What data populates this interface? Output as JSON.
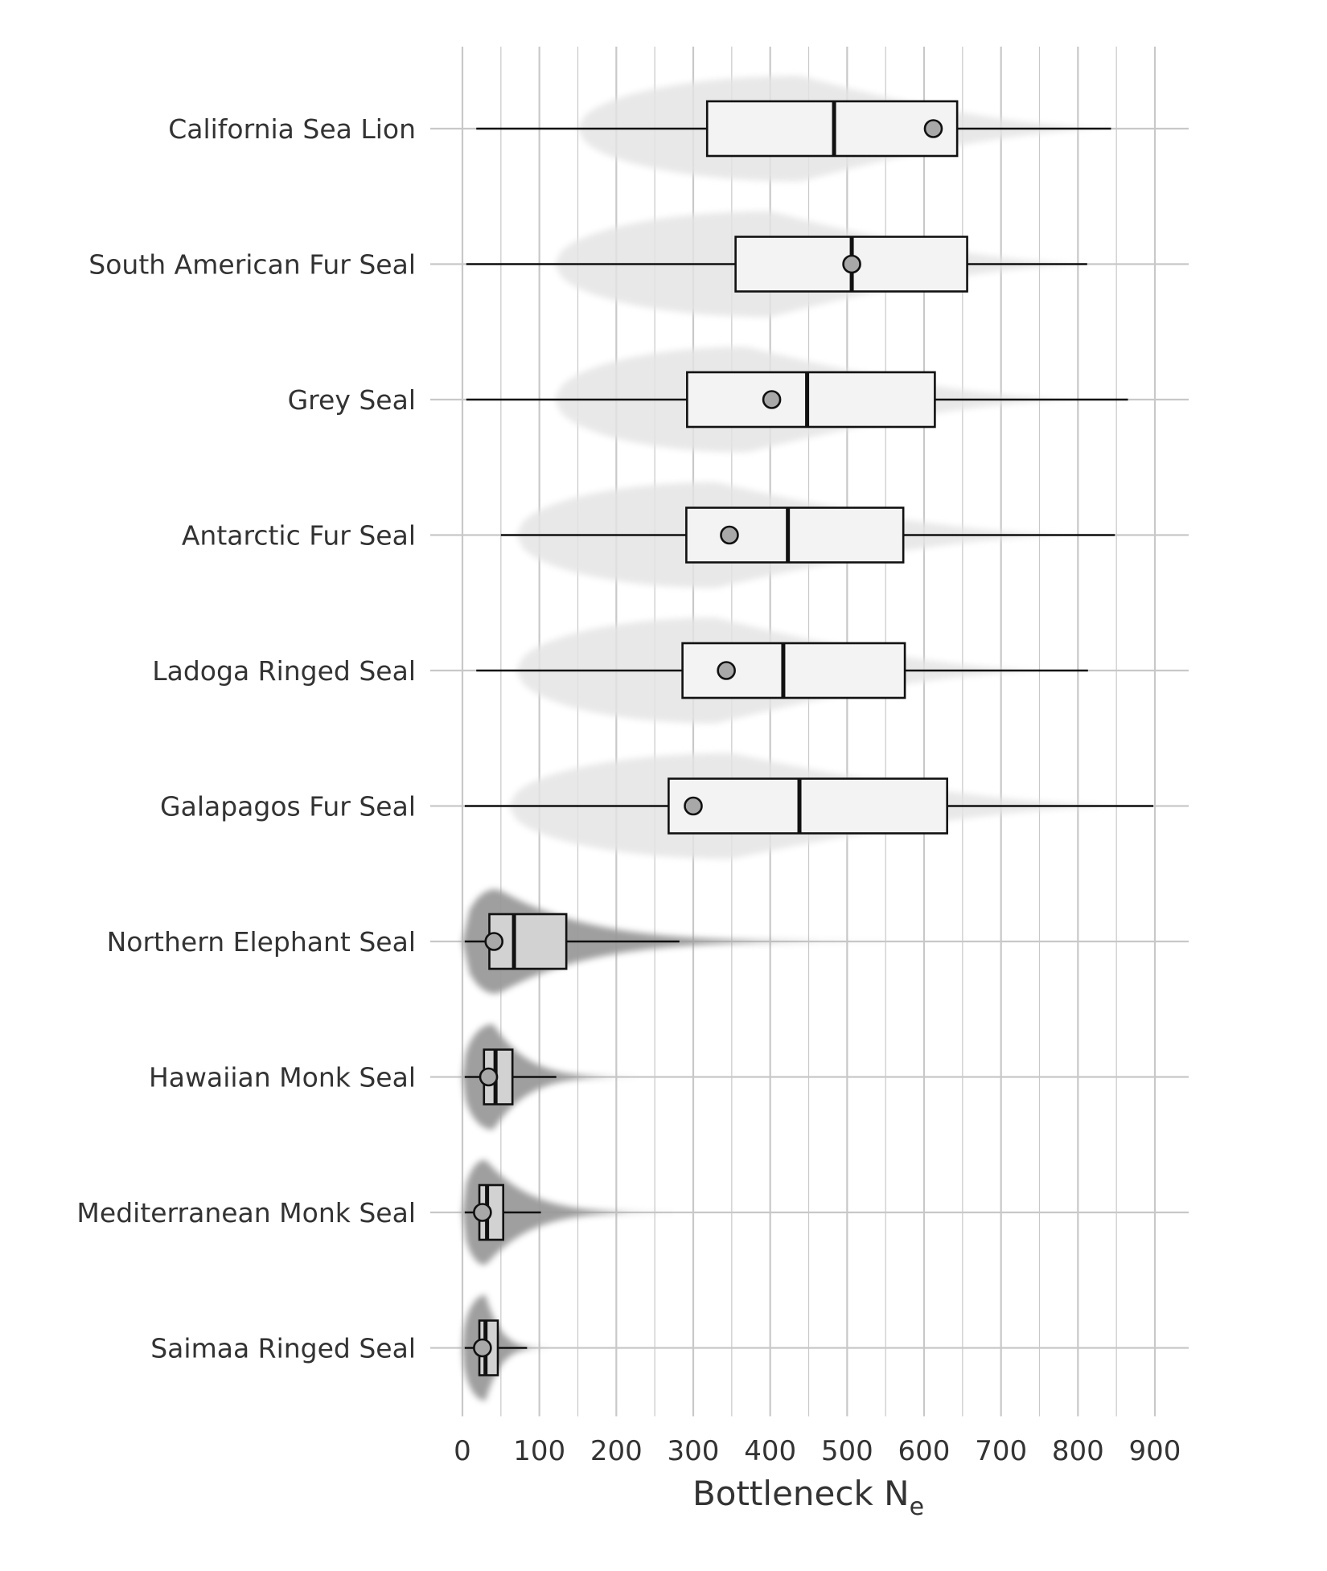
{
  "chart_data": {
    "type": "boxplot-violin",
    "orientation": "horizontal",
    "title": "",
    "xlabel": "Bottleneck N",
    "xlabel_subscript": "e",
    "xlim": [
      0,
      945
    ],
    "xticks": [
      0,
      100,
      200,
      300,
      400,
      500,
      600,
      700,
      800,
      900
    ],
    "xtick_labels": [
      "0",
      "100",
      "200",
      "300",
      "400",
      "500",
      "600",
      "700",
      "800",
      "900"
    ],
    "minor_gridlines": [
      50,
      150,
      250,
      350,
      450,
      550,
      650,
      750,
      850
    ],
    "grid": true,
    "point_marker": "filled circle (grey)",
    "series": [
      {
        "name": "California Sea Lion",
        "whisker_low": 18,
        "q1": 318,
        "median": 483,
        "q3": 643,
        "whisker_high": 843,
        "point": 612,
        "violin_min": 150,
        "violin_max": 840,
        "violin_peak": 440,
        "violin_width": 0.78
      },
      {
        "name": "South American Fur Seal",
        "whisker_low": 5,
        "q1": 355,
        "median": 506,
        "q3": 656,
        "whisker_high": 812,
        "point": 506,
        "violin_min": 120,
        "violin_max": 815,
        "violin_peak": 400,
        "violin_width": 0.78
      },
      {
        "name": "Grey Seal",
        "whisker_low": 5,
        "q1": 292,
        "median": 448,
        "q3": 614,
        "whisker_high": 865,
        "point": 402,
        "violin_min": 120,
        "violin_max": 800,
        "violin_peak": 370,
        "violin_width": 0.78
      },
      {
        "name": "Antarctic Fur Seal",
        "whisker_low": 50,
        "q1": 291,
        "median": 423,
        "q3": 573,
        "whisker_high": 848,
        "point": 347,
        "violin_min": 70,
        "violin_max": 790,
        "violin_peak": 330,
        "violin_width": 0.78
      },
      {
        "name": "Ladoga Ringed Seal",
        "whisker_low": 18,
        "q1": 286,
        "median": 417,
        "q3": 575,
        "whisker_high": 813,
        "point": 343,
        "violin_min": 70,
        "violin_max": 760,
        "violin_peak": 330,
        "violin_width": 0.78
      },
      {
        "name": "Galapagos Fur Seal",
        "whisker_low": 3,
        "q1": 268,
        "median": 438,
        "q3": 630,
        "whisker_high": 898,
        "point": 300,
        "violin_min": 60,
        "violin_max": 860,
        "violin_peak": 350,
        "violin_width": 0.78
      },
      {
        "name": "Northern Elephant Seal",
        "whisker_low": 3,
        "q1": 35,
        "median": 67,
        "q3": 135,
        "whisker_high": 282,
        "point": 41,
        "violin_min": 0,
        "violin_max": 760,
        "violin_peak": 45,
        "violin_width": 0.78
      },
      {
        "name": "Hawaiian Monk Seal",
        "whisker_low": 3,
        "q1": 28,
        "median": 43,
        "q3": 65,
        "whisker_high": 122,
        "point": 34,
        "violin_min": 0,
        "violin_max": 310,
        "violin_peak": 40,
        "violin_width": 0.78
      },
      {
        "name": "Mediterranean Monk Seal",
        "whisker_low": 3,
        "q1": 22,
        "median": 32,
        "q3": 53,
        "whisker_high": 102,
        "point": 26,
        "violin_min": 0,
        "violin_max": 380,
        "violin_peak": 30,
        "violin_width": 0.78
      },
      {
        "name": "Saimaa Ringed Seal",
        "whisker_low": 3,
        "q1": 22,
        "median": 30,
        "q3": 46,
        "whisker_high": 84,
        "point": 26,
        "violin_min": 0,
        "violin_max": 150,
        "violin_peak": 30,
        "violin_width": 0.78
      }
    ],
    "colors": {
      "grid": "#c8c8c8",
      "violin_light": "#e4e4e4",
      "violin_dark": "#9a9a9a",
      "box_fill_light": "#f3f3f3",
      "box_fill_dark": "#d2d2d2",
      "outline": "#111111",
      "point_fill": "#a8a8a8",
      "text": "#333333"
    }
  }
}
